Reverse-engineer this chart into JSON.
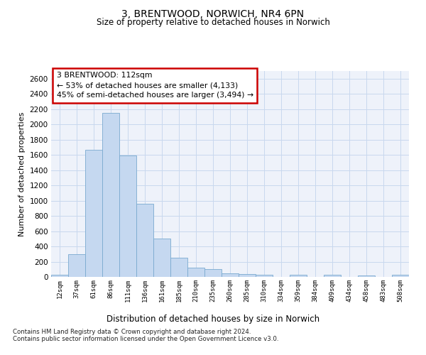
{
  "title_line1": "3, BRENTWOOD, NORWICH, NR4 6PN",
  "title_line2": "Size of property relative to detached houses in Norwich",
  "xlabel": "Distribution of detached houses by size in Norwich",
  "ylabel": "Number of detached properties",
  "categories": [
    "12sqm",
    "37sqm",
    "61sqm",
    "86sqm",
    "111sqm",
    "136sqm",
    "161sqm",
    "185sqm",
    "210sqm",
    "235sqm",
    "260sqm",
    "285sqm",
    "310sqm",
    "334sqm",
    "359sqm",
    "384sqm",
    "409sqm",
    "434sqm",
    "458sqm",
    "483sqm",
    "508sqm"
  ],
  "values": [
    25,
    300,
    1670,
    2150,
    1590,
    960,
    500,
    250,
    120,
    100,
    50,
    35,
    25,
    0,
    30,
    0,
    25,
    0,
    20,
    0,
    25
  ],
  "bar_color": "#c5d8f0",
  "bar_edge_color": "#7aaad0",
  "highlight_index": 4,
  "annotation_text": "3 BRENTWOOD: 112sqm\n← 53% of detached houses are smaller (4,133)\n45% of semi-detached houses are larger (3,494) →",
  "annotation_box_facecolor": "#ffffff",
  "annotation_box_edgecolor": "#cc0000",
  "ylim": [
    0,
    2700
  ],
  "yticks": [
    0,
    200,
    400,
    600,
    800,
    1000,
    1200,
    1400,
    1600,
    1800,
    2000,
    2200,
    2400,
    2600
  ],
  "grid_color": "#c8d8ee",
  "background_color": "#eef2fa",
  "footer_line1": "Contains HM Land Registry data © Crown copyright and database right 2024.",
  "footer_line2": "Contains public sector information licensed under the Open Government Licence v3.0."
}
